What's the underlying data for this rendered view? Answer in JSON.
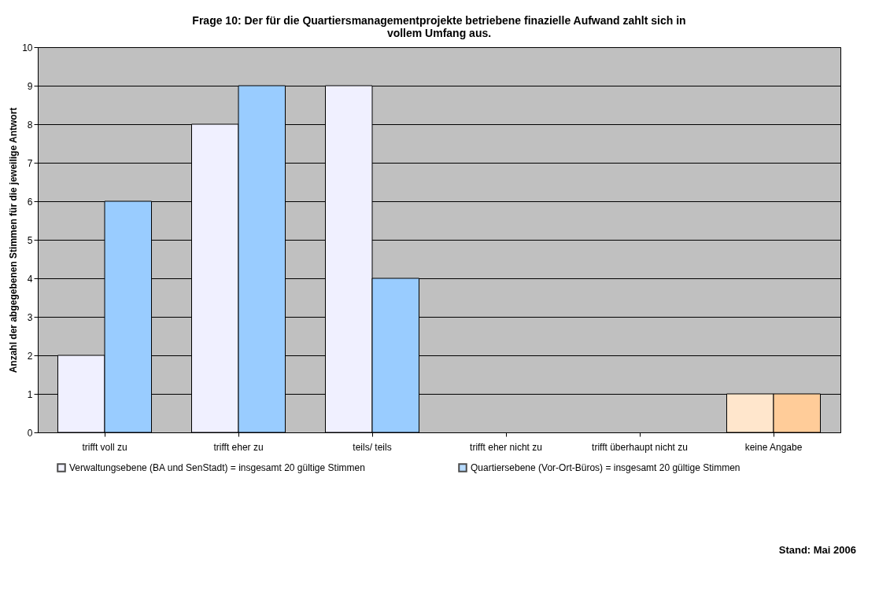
{
  "chart_data": {
    "type": "bar",
    "title": "Frage 10: Der für die Quartiersmanagementprojekte betriebene finazielle Aufwand zahlt sich in vollem Umfang aus.",
    "ylabel": "Anzahl der abgegebenen Stimmen für die jeweilige Antwort",
    "categories": [
      "trifft voll zu",
      "trifft eher zu",
      "teils/ teils",
      "trifft eher nicht zu",
      "trifft überhaupt nicht zu",
      "keine Angabe"
    ],
    "series": [
      {
        "name": "Verwaltungsebene (BA und SenStadt) = insgesamt 20 gültige Stimmen",
        "color": "#f0f0ff",
        "colors": [
          "#f0f0ff",
          "#f0f0ff",
          "#f0f0ff",
          "#f0f0ff",
          "#f0f0ff",
          "#ffe6cc"
        ],
        "values": [
          2,
          8,
          9,
          0,
          0,
          1
        ]
      },
      {
        "name": "Quartiersebene (Vor-Ort-Büros) = insgesamt 20 gültige Stimmen",
        "color": "#99ccff",
        "colors": [
          "#99ccff",
          "#99ccff",
          "#99ccff",
          "#99ccff",
          "#99ccff",
          "#ffcc99"
        ],
        "values": [
          6,
          9,
          4,
          0,
          0,
          1
        ]
      }
    ],
    "ylim": [
      0,
      10
    ],
    "yticks": [
      0,
      1,
      2,
      3,
      4,
      5,
      6,
      7,
      8,
      9,
      10
    ],
    "grid": "y",
    "legend": "bottom",
    "annotations": [
      "Stand: Mai 2006"
    ]
  }
}
